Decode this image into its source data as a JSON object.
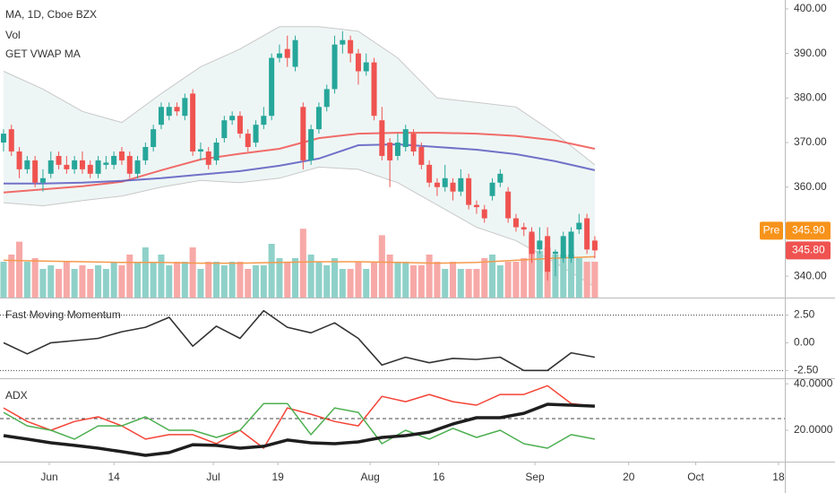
{
  "chart_data": [
    {
      "type": "candlestick",
      "title": "MA, 1D, Cboe BZX",
      "legend": [
        "Vol",
        "GET VWAP MA"
      ],
      "x": [
        0,
        1,
        2,
        3,
        4,
        5,
        6,
        7,
        8,
        9,
        10,
        11,
        12,
        13,
        14,
        15,
        16,
        17,
        18,
        19,
        20,
        21,
        22,
        23,
        24,
        25,
        26,
        27,
        28,
        29,
        30,
        31,
        32,
        33,
        34,
        35,
        36,
        37,
        38,
        39,
        40,
        41,
        42,
        43,
        44,
        45,
        46,
        47,
        48,
        49,
        50,
        51,
        52,
        53,
        54,
        55,
        56,
        57,
        58,
        59,
        60,
        61,
        62,
        63,
        64,
        65,
        66,
        67,
        68,
        69,
        70,
        71,
        72,
        73,
        74,
        75
      ],
      "open": [
        370,
        373,
        368,
        364,
        366,
        361,
        363,
        367,
        365,
        364,
        366,
        365,
        363,
        365,
        365,
        368,
        367,
        363,
        366,
        369,
        374,
        376,
        378,
        376,
        381,
        368,
        368,
        366,
        371,
        375,
        376,
        372,
        370,
        374,
        376,
        389,
        391,
        387,
        378,
        366,
        373,
        378,
        382,
        392,
        393,
        390,
        386,
        388,
        375,
        370,
        367,
        369,
        372,
        369,
        365,
        361,
        360,
        361,
        359,
        362,
        356,
        355,
        358,
        361,
        359,
        353,
        351,
        350,
        346,
        349,
        345,
        344,
        344,
        350.5,
        353,
        348
      ],
      "high": [
        373,
        374,
        369,
        367,
        367,
        364,
        368,
        368,
        367,
        367,
        368,
        366,
        367,
        367,
        368,
        369,
        368,
        367,
        370,
        374,
        379,
        379,
        379,
        381,
        382,
        370,
        369,
        371,
        376,
        377,
        377,
        373,
        375,
        378,
        390,
        392,
        394,
        394,
        379,
        374,
        379,
        383,
        394,
        395,
        394,
        391,
        390,
        389,
        378,
        371,
        372,
        374,
        373,
        370,
        366,
        362,
        365,
        362,
        364,
        363,
        357,
        356,
        362,
        364,
        360,
        354,
        352,
        351,
        351,
        351,
        346,
        350,
        351,
        354,
        354,
        349
      ],
      "low": [
        368,
        367,
        362,
        363,
        360,
        359,
        362,
        364,
        363,
        363,
        363,
        362,
        362,
        364,
        364,
        365,
        362,
        362,
        365,
        368,
        373,
        375,
        376,
        375,
        367,
        366,
        364,
        365,
        370,
        374,
        371,
        368,
        369,
        373,
        375,
        388,
        387,
        386,
        364,
        365,
        372,
        377,
        381,
        390,
        388,
        383,
        385,
        375,
        366,
        360,
        366,
        368,
        367,
        364,
        360,
        358,
        359,
        357,
        358,
        355,
        354,
        352,
        357,
        360,
        352,
        350,
        349,
        343,
        345,
        339,
        340,
        343,
        343,
        349.5,
        345,
        344
      ],
      "close": [
        372,
        368,
        364,
        366,
        361,
        362,
        366,
        365,
        364,
        366,
        364,
        363,
        366,
        365.5,
        367,
        366,
        363,
        366,
        369,
        373,
        378,
        378,
        377,
        380,
        368,
        368.5,
        365,
        370,
        375,
        376,
        372,
        369,
        374,
        376,
        389,
        390,
        389,
        393,
        366,
        373,
        378,
        382,
        392,
        393,
        390,
        386,
        388,
        376,
        367,
        366,
        370,
        373,
        368,
        365,
        361,
        360,
        362,
        359,
        362,
        356,
        355.5,
        353,
        361,
        363,
        353,
        351,
        350.5,
        345,
        348,
        341,
        345.5,
        349,
        350,
        352,
        346,
        345.8
      ],
      "up_color": "#26a69a",
      "down_color": "#ef5350",
      "volume": {
        "values": [
          5,
          6,
          7.8,
          5,
          5.5,
          4,
          4.5,
          4,
          5,
          4,
          4.5,
          4,
          4.5,
          4,
          5,
          4.5,
          6,
          5,
          7,
          5,
          6,
          4.5,
          5,
          5,
          7,
          4,
          5,
          5,
          4.5,
          5,
          5,
          4,
          4.5,
          4.5,
          7.5,
          5.5,
          5,
          5.5,
          9.6,
          6,
          5,
          4.5,
          5.5,
          4,
          4,
          5,
          4,
          5,
          8.7,
          6,
          5,
          5,
          4.5,
          4.5,
          6,
          5,
          4,
          5,
          4,
          4,
          4,
          5.5,
          6,
          4.5,
          5,
          5,
          5.5,
          8.8,
          6.5,
          7,
          6,
          6,
          6,
          5.5,
          5,
          5
        ],
        "lim": [
          0,
          41.5
        ],
        "up_color": "#8fd1c9",
        "down_color": "#f7a9a7",
        "ma": {
          "color": "#f59a4c",
          "x": [
            0,
            5,
            10,
            15,
            20,
            25,
            30,
            35,
            40,
            45,
            50,
            55,
            60,
            65,
            70,
            75
          ],
          "values": [
            5.2,
            5.1,
            5,
            4.9,
            4.9,
            4.8,
            4.8,
            4.9,
            5,
            5,
            4.9,
            4.8,
            4.9,
            5.2,
            5.5,
            5.7
          ]
        }
      },
      "band": {
        "color": "#c8c8c8",
        "fill": "#eef6f5",
        "x": [
          0,
          5,
          10,
          15,
          20,
          25,
          30,
          35,
          40,
          45,
          50,
          55,
          60,
          65,
          70,
          75
        ],
        "upper": [
          386,
          382,
          377,
          374.5,
          381,
          387,
          391,
          396,
          396,
          395,
          389,
          380,
          379,
          378,
          372,
          365
        ],
        "lower": [
          356.5,
          355.8,
          357,
          358,
          360,
          361.5,
          361,
          362,
          364.5,
          364,
          361,
          356,
          351,
          348,
          343,
          337.6
        ]
      },
      "lines": [
        {
          "color": "#f05350",
          "x": [
            0,
            5,
            10,
            15,
            20,
            25,
            30,
            35,
            40,
            45,
            50,
            55,
            60,
            65,
            70,
            75
          ],
          "values": [
            358.8,
            359.5,
            360.2,
            361.2,
            363.8,
            366.2,
            367.5,
            368.6,
            371,
            372,
            372.2,
            372.2,
            372,
            371.5,
            370.5,
            368.6
          ]
        },
        {
          "color": "#5a5bbf",
          "x": [
            0,
            5,
            10,
            15,
            20,
            25,
            30,
            35,
            40,
            45,
            50,
            55,
            60,
            65,
            70,
            75
          ],
          "values": [
            360.8,
            360.8,
            361,
            361.4,
            362,
            362.8,
            363.6,
            364.8,
            366.4,
            369.4,
            369.6,
            369,
            368.4,
            367.4,
            365.8,
            363.8
          ]
        }
      ],
      "xlim": [
        -0.45,
        99.1
      ],
      "ylim": [
        335.2,
        402
      ],
      "yticks": [
        {
          "value": 400,
          "label": "400.00"
        },
        {
          "value": 390,
          "label": "390.00"
        },
        {
          "value": 380,
          "label": "380.00"
        },
        {
          "value": 370,
          "label": "370.00"
        },
        {
          "value": 360,
          "label": "360.00"
        },
        {
          "value": 340,
          "label": "340.00"
        }
      ],
      "pre_label": "Pre",
      "pre_color": "#f7931a",
      "pre_price": {
        "value": 345.9,
        "label": "345.90"
      },
      "last_price": {
        "value": 345.8,
        "label": "345.80"
      },
      "last_color": "#ef5350"
    },
    {
      "type": "line",
      "title": "Fast Moving Momentum",
      "series": [
        {
          "color": "#333333",
          "x": [
            0,
            3,
            6,
            9,
            12,
            15,
            18,
            21,
            24,
            27,
            30,
            33,
            36,
            39,
            42,
            45,
            48,
            51,
            54,
            57,
            60,
            63,
            66,
            69,
            72,
            75
          ],
          "values": [
            0.0,
            -1.0,
            0.0,
            0.2,
            0.4,
            1.0,
            1.4,
            2.3,
            -0.3,
            1.5,
            0.4,
            2.9,
            1.4,
            0.9,
            1.8,
            0.4,
            -2.0,
            -1.3,
            -1.8,
            -1.4,
            -1.5,
            -1.3,
            -2.5,
            -2.5,
            -0.9,
            -1.3
          ]
        }
      ],
      "levels": [
        2.5,
        -2.5
      ],
      "xlim": [
        -0.45,
        99.1
      ],
      "ylim": [
        -3.2,
        4.0
      ],
      "yticks": [
        {
          "value": 2.5,
          "label": "2.50"
        },
        {
          "value": 0,
          "label": "0.00"
        },
        {
          "value": -2.5,
          "label": "-2.50"
        }
      ]
    },
    {
      "type": "line",
      "title": "ADX",
      "series": [
        {
          "color": "#f44336",
          "width": 1.5,
          "x": [
            0,
            3,
            6,
            9,
            12,
            15,
            18,
            21,
            24,
            27,
            30,
            33,
            36,
            39,
            42,
            45,
            48,
            51,
            54,
            57,
            60,
            63,
            66,
            69,
            72,
            75
          ],
          "values": [
            29.6,
            23.8,
            20,
            23.8,
            25.8,
            21.9,
            16.2,
            18.1,
            18.1,
            14.2,
            20,
            12.3,
            29.6,
            26.9,
            23.8,
            21.9,
            34.6,
            32.3,
            35.4,
            32.3,
            30.8,
            35.4,
            35.4,
            39.2,
            31.5,
            30.4
          ]
        },
        {
          "color": "#4caf50",
          "width": 1.5,
          "x": [
            0,
            3,
            6,
            9,
            12,
            15,
            18,
            21,
            24,
            27,
            30,
            33,
            36,
            39,
            42,
            45,
            48,
            51,
            54,
            57,
            60,
            63,
            66,
            69,
            72,
            75
          ],
          "values": [
            27.7,
            21.9,
            20,
            16.2,
            21.9,
            21.9,
            25.8,
            20,
            20,
            16.9,
            20,
            31.5,
            31.5,
            18.1,
            29.6,
            27.7,
            14.2,
            20,
            16.2,
            20.8,
            16.9,
            20,
            14.2,
            12.3,
            18.1,
            16.2
          ]
        },
        {
          "color": "#1e1e1e",
          "width": 3.5,
          "x": [
            0,
            3,
            6,
            9,
            12,
            15,
            18,
            21,
            24,
            27,
            30,
            33,
            36,
            39,
            42,
            45,
            48,
            51,
            54,
            57,
            60,
            63,
            66,
            69,
            72,
            75
          ],
          "values": [
            17.7,
            16.2,
            14.6,
            13.5,
            12.3,
            10.8,
            9.2,
            10.4,
            13.8,
            13.5,
            12.3,
            13.1,
            15.8,
            14.6,
            14.2,
            15.0,
            16.9,
            17.7,
            19.2,
            22.7,
            25.4,
            25.4,
            27.3,
            31.2,
            30.8,
            30.4
          ]
        }
      ],
      "levels": [
        25
      ],
      "xlim": [
        -0.45,
        99.1
      ],
      "ylim": [
        6.5,
        42
      ],
      "yticks": [
        {
          "value": 40,
          "label": "40.0000"
        },
        {
          "value": 20,
          "label": "20.0000"
        }
      ],
      "xticks": [
        {
          "value": 5.8,
          "label": "Jun"
        },
        {
          "value": 14,
          "label": "14"
        },
        {
          "value": 26.6,
          "label": "Jul"
        },
        {
          "value": 34.8,
          "label": "19"
        },
        {
          "value": 46.5,
          "label": "Aug"
        },
        {
          "value": 55.2,
          "label": "16"
        },
        {
          "value": 67.4,
          "label": "Sep"
        },
        {
          "value": 79.3,
          "label": "20"
        },
        {
          "value": 87.8,
          "label": "Oct"
        },
        {
          "value": 98.3,
          "label": "18"
        }
      ]
    }
  ]
}
